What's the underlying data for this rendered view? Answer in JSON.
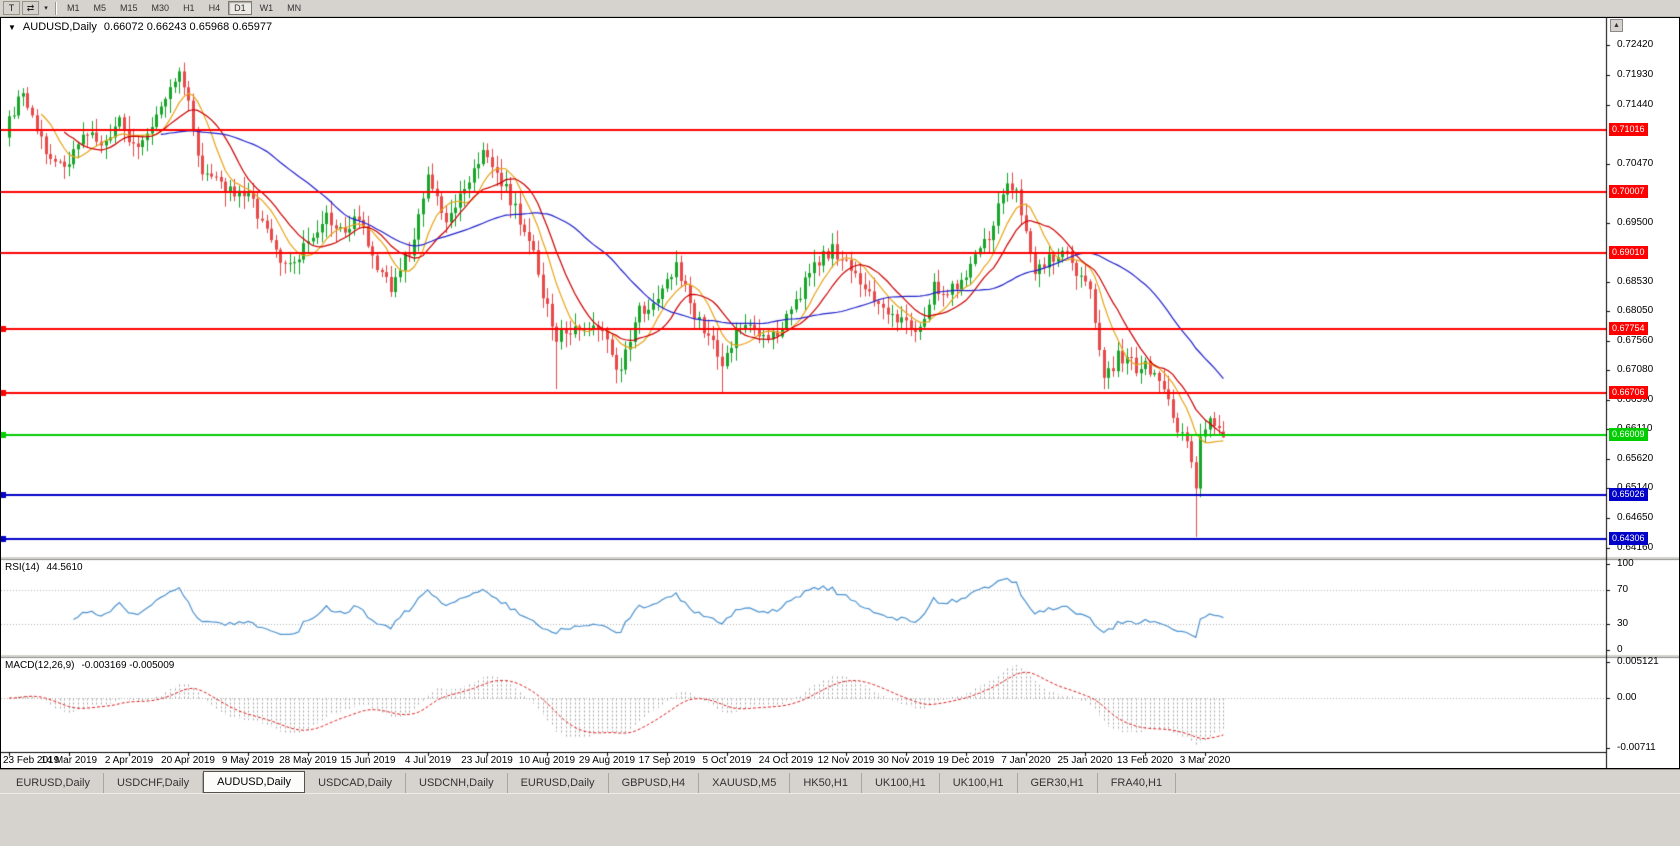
{
  "icons": {
    "dropdown_arrow": "▼",
    "caret_down": "▾",
    "scroll_up_arrow": "▲"
  },
  "toolbar": {
    "tool_buttons": [
      {
        "name": "templates-button",
        "glyph": "T"
      },
      {
        "name": "chart-objects-button",
        "glyph": "⇄"
      },
      {
        "name": "chart-objects-dropdown",
        "glyph": "▾",
        "narrow": true
      }
    ],
    "timeframes": [
      {
        "label": "M1",
        "active": false
      },
      {
        "label": "M5",
        "active": false
      },
      {
        "label": "M15",
        "active": false
      },
      {
        "label": "M30",
        "active": false
      },
      {
        "label": "H1",
        "active": false
      },
      {
        "label": "H4",
        "active": false
      },
      {
        "label": "D1",
        "active": true
      },
      {
        "label": "W1",
        "active": false
      },
      {
        "label": "MN",
        "active": false
      }
    ]
  },
  "chart": {
    "symbol_title": "AUDUSD,Daily",
    "ohlc_text": "0.66072 0.66243 0.65968 0.65977",
    "open": "0.66072",
    "high": "0.66243",
    "low": "0.65968",
    "close": "0.65977"
  },
  "chart_data": {
    "type": "candlestick",
    "symbol": "AUDUSD",
    "timeframe": "Daily",
    "candles_count": 265,
    "label_every_candles": 13,
    "price_axis": {
      "max": 0.7242,
      "min": 0.6416,
      "ticks": [
        "0.72420",
        "0.71930",
        "0.71440",
        "0.70960",
        "0.70470",
        "0.69980",
        "0.69500",
        "0.69010",
        "0.68530",
        "0.68050",
        "0.67560",
        "0.67080",
        "0.66590",
        "0.66110",
        "0.65620",
        "0.65140",
        "0.64650",
        "0.64160"
      ]
    },
    "x_labels": [
      "23 Feb 2019",
      "14 Mar 2019",
      "2 Apr 2019",
      "20 Apr 2019",
      "9 May 2019",
      "28 May 2019",
      "15 Jun 2019",
      "4 Jul 2019",
      "23 Jul 2019",
      "10 Aug 2019",
      "29 Aug 2019",
      "17 Sep 2019",
      "5 Oct 2019",
      "24 Oct 2019",
      "12 Nov 2019",
      "30 Nov 2019",
      "19 Dec 2019",
      "7 Jan 2020",
      "25 Jan 2020",
      "13 Feb 2020",
      "3 Mar 2020"
    ],
    "close_path_anchors": [
      [
        0,
        0.7125
      ],
      [
        3,
        0.716
      ],
      [
        7,
        0.7085
      ],
      [
        11,
        0.704
      ],
      [
        13,
        0.7055
      ],
      [
        17,
        0.71
      ],
      [
        21,
        0.7075
      ],
      [
        24,
        0.7115
      ],
      [
        27,
        0.7075
      ],
      [
        31,
        0.71
      ],
      [
        35,
        0.717
      ],
      [
        37,
        0.719
      ],
      [
        39,
        0.7155
      ],
      [
        42,
        0.7025
      ],
      [
        46,
        0.701
      ],
      [
        52,
        0.699
      ],
      [
        56,
        0.6945
      ],
      [
        59,
        0.6875
      ],
      [
        63,
        0.689
      ],
      [
        65,
        0.692
      ],
      [
        69,
        0.696
      ],
      [
        73,
        0.6935
      ],
      [
        76,
        0.6965
      ],
      [
        80,
        0.687
      ],
      [
        83,
        0.6845
      ],
      [
        87,
        0.6905
      ],
      [
        91,
        0.702
      ],
      [
        95,
        0.695
      ],
      [
        99,
        0.701
      ],
      [
        103,
        0.707
      ],
      [
        106,
        0.7035
      ],
      [
        110,
        0.697
      ],
      [
        113,
        0.693
      ],
      [
        116,
        0.683
      ],
      [
        119,
        0.676
      ],
      [
        123,
        0.6785
      ],
      [
        127,
        0.6775
      ],
      [
        130,
        0.676
      ],
      [
        133,
        0.67
      ],
      [
        136,
        0.6795
      ],
      [
        140,
        0.6825
      ],
      [
        145,
        0.688
      ],
      [
        149,
        0.68
      ],
      [
        153,
        0.676
      ],
      [
        155,
        0.6705
      ],
      [
        158,
        0.677
      ],
      [
        161,
        0.679
      ],
      [
        165,
        0.6755
      ],
      [
        169,
        0.679
      ],
      [
        173,
        0.685
      ],
      [
        176,
        0.6885
      ],
      [
        179,
        0.691
      ],
      [
        182,
        0.688
      ],
      [
        186,
        0.684
      ],
      [
        190,
        0.681
      ],
      [
        195,
        0.678
      ],
      [
        198,
        0.677
      ],
      [
        201,
        0.685
      ],
      [
        204,
        0.683
      ],
      [
        208,
        0.687
      ],
      [
        211,
        0.6905
      ],
      [
        214,
        0.6945
      ],
      [
        217,
        0.702
      ],
      [
        219,
        0.6995
      ],
      [
        223,
        0.6865
      ],
      [
        227,
        0.6895
      ],
      [
        229,
        0.6905
      ],
      [
        232,
        0.687
      ],
      [
        235,
        0.684
      ],
      [
        238,
        0.6695
      ],
      [
        241,
        0.673
      ],
      [
        245,
        0.6715
      ],
      [
        247,
        0.6725
      ],
      [
        250,
        0.6685
      ],
      [
        253,
        0.663
      ],
      [
        255,
        0.66
      ],
      [
        257,
        0.656
      ],
      [
        258,
        0.6515
      ],
      [
        259,
        0.661
      ],
      [
        260,
        0.66
      ],
      [
        261,
        0.664
      ],
      [
        262,
        0.6615
      ],
      [
        264,
        0.65977
      ]
    ],
    "spike_lows": [
      {
        "index": 119,
        "low": 0.6677
      },
      {
        "index": 133,
        "low": 0.6688
      },
      {
        "index": 155,
        "low": 0.6671
      },
      {
        "index": 258,
        "low": 0.6434
      }
    ],
    "spike_highs": [
      {
        "index": 37,
        "high": 0.7205
      },
      {
        "index": 103,
        "high": 0.7082
      },
      {
        "index": 217,
        "high": 0.7032
      }
    ],
    "last_candle": {
      "open": 0.66072,
      "high": 0.66243,
      "low": 0.65968,
      "close": 0.65977
    },
    "colors": {
      "bull": "#18a52a",
      "bear": "#e84a4a",
      "background": "#ffffff",
      "axis_text": "#000000"
    },
    "ma_lines": [
      {
        "period": 8,
        "color": "#e8a418"
      },
      {
        "period": 13,
        "color": "#cc0000"
      },
      {
        "period": 34,
        "color": "#2121cc"
      }
    ],
    "hlines": [
      {
        "price": 0.71016,
        "label": "0.71016",
        "color": "#ff0000",
        "width": 2,
        "marker": false
      },
      {
        "price": 0.70007,
        "label": "0.70007",
        "color": "#ff0000",
        "width": 2,
        "marker": false
      },
      {
        "price": 0.6901,
        "label": "0.69010",
        "color": "#ff0000",
        "width": 2,
        "marker": false
      },
      {
        "price": 0.67754,
        "label": "0.67754",
        "color": "#ff0000",
        "width": 2,
        "marker": true
      },
      {
        "price": 0.66706,
        "label": "0.66706",
        "color": "#ff0000",
        "width": 2,
        "marker": true
      },
      {
        "price": 0.66009,
        "label": "0.66009",
        "color": "#00cc00",
        "width": 2,
        "marker": true
      },
      {
        "price": 0.65026,
        "label": "0.65026",
        "color": "#0000c8",
        "width": 2,
        "marker": true
      },
      {
        "price": 0.64306,
        "label": "0.64306",
        "color": "#0000c8",
        "width": 2,
        "marker": true
      }
    ],
    "indicators": {
      "rsi": {
        "name": "RSI(14)",
        "period": 14,
        "current_value": "44.5610",
        "levels": [
          100,
          70,
          30,
          0
        ],
        "dotted_levels": [
          70,
          30
        ],
        "line_color": "#4f94d0"
      },
      "macd": {
        "name": "MACD(12,26,9)",
        "fast": 12,
        "slow": 26,
        "signal": 9,
        "current_values": "-0.003169 -0.005009",
        "axis_labels": [
          "0.005121",
          "0.00",
          "-0.00711"
        ],
        "max": 0.005121,
        "min": -0.00711,
        "histogram_color": "#a9a9a9",
        "signal_color": "#dd2222"
      }
    }
  },
  "window_tabs": [
    {
      "label": "EURUSD,Daily",
      "active": false
    },
    {
      "label": "USDCHF,Daily",
      "active": false
    },
    {
      "label": "AUDUSD,Daily",
      "active": true
    },
    {
      "label": "USDCAD,Daily",
      "active": false
    },
    {
      "label": "USDCNH,Daily",
      "active": false
    },
    {
      "label": "EURUSD,Daily",
      "active": false
    },
    {
      "label": "GBPUSD,H4",
      "active": false
    },
    {
      "label": "XAUUSD,M5",
      "active": false
    },
    {
      "label": "HK50,H1",
      "active": false
    },
    {
      "label": "UK100,H1",
      "active": false
    },
    {
      "label": "UK100,H1",
      "active": false
    },
    {
      "label": "GER30,H1",
      "active": false
    },
    {
      "label": "FRA40,H1",
      "active": false
    }
  ]
}
